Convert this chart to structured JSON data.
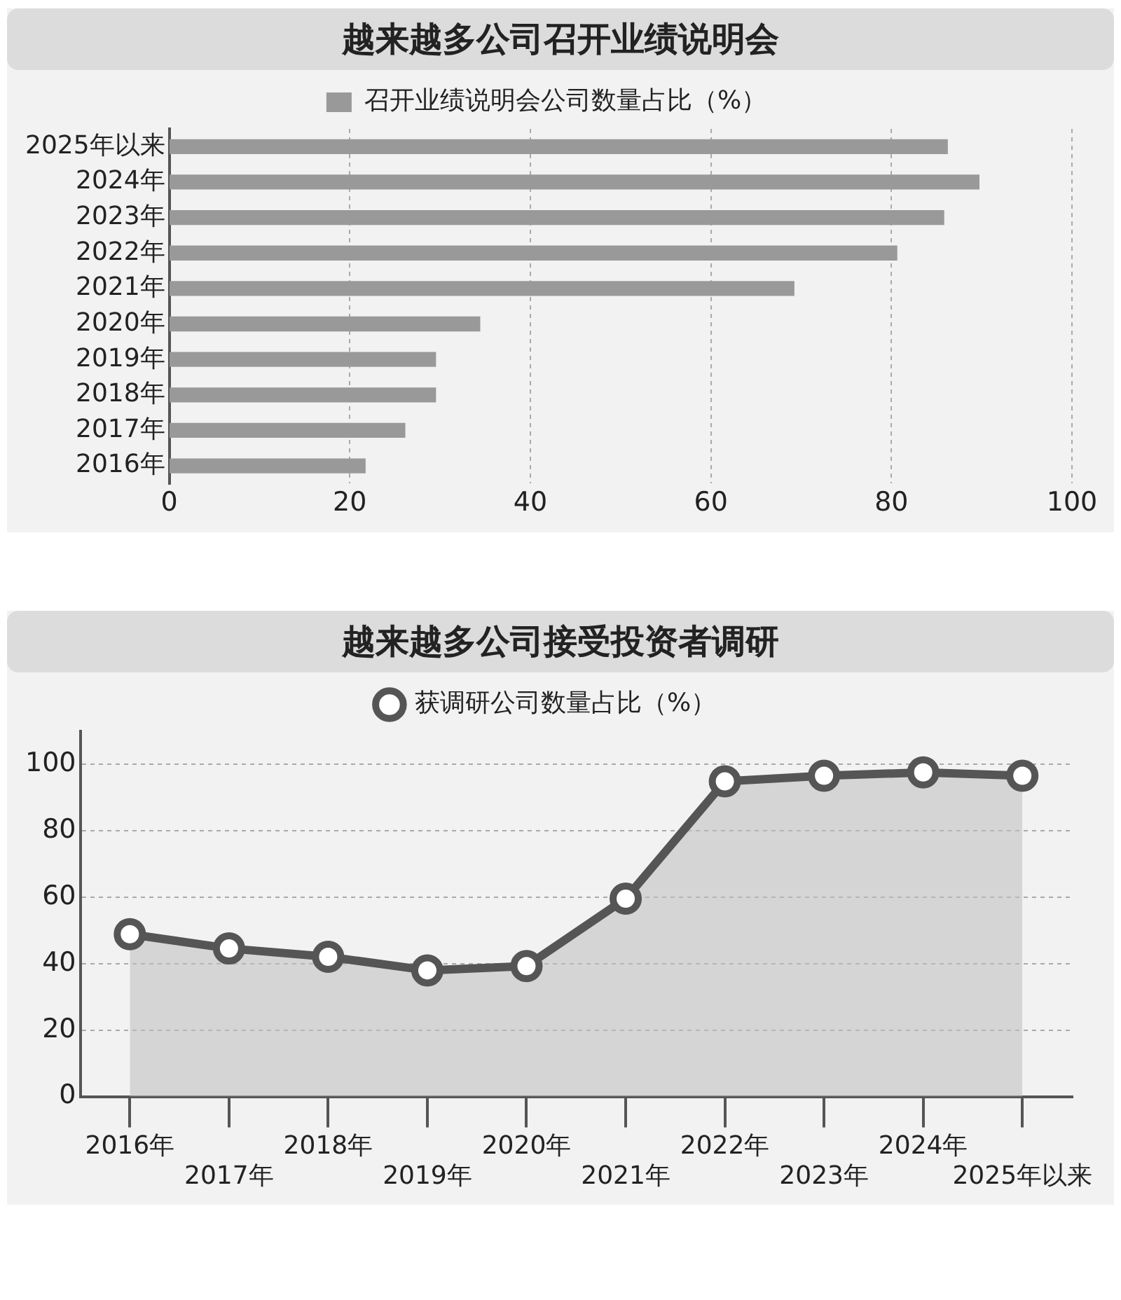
{
  "chart_data": [
    {
      "type": "bar",
      "title": "越来越多公司召开业绩说明会",
      "orientation": "horizontal",
      "categories": [
        "2025年以来",
        "2024年",
        "2023年",
        "2022年",
        "2021年",
        "2020年",
        "2019年",
        "2018年",
        "2017年",
        "2016年"
      ],
      "series": [
        {
          "name": "召开业绩说明会公司数量占比（%）",
          "color": "#999999",
          "values": [
            86.2,
            89.7,
            85.8,
            80.6,
            69.2,
            34.4,
            29.5,
            29.5,
            26.1,
            21.7
          ]
        }
      ],
      "xlim": [
        0,
        100
      ],
      "xticks": [
        0,
        20,
        40,
        60,
        80,
        100
      ],
      "grid": "x",
      "legend": "top"
    },
    {
      "type": "area",
      "title": "越来越多公司接受投资者调研",
      "categories": [
        "2016年",
        "2017年",
        "2018年",
        "2019年",
        "2020年",
        "2021年",
        "2022年",
        "2023年",
        "2024年",
        "2025年以来"
      ],
      "series": [
        {
          "name": "获调研公司数量占比（%）",
          "color": "#555555",
          "values": [
            48.9,
            44.6,
            42.1,
            38.0,
            39.3,
            59.6,
            94.9,
            96.6,
            97.6,
            96.6
          ]
        }
      ],
      "ylim": [
        0,
        110
      ],
      "yticks": [
        0,
        20,
        40,
        60,
        80,
        100
      ],
      "grid": "y",
      "legend": "top",
      "marker": "circle",
      "line_style": "solid"
    }
  ]
}
